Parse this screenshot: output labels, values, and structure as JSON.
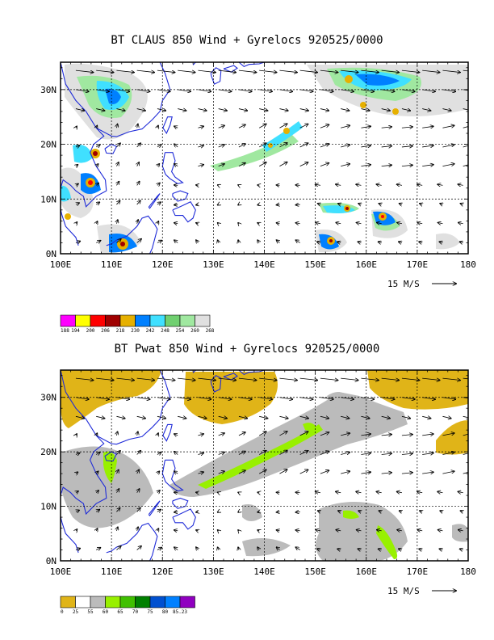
{
  "panel1": {
    "title": "BT CLAUS 850 Wind + Gyrelocs 920525/0000",
    "lon_labels": [
      "100E",
      "110E",
      "120E",
      "130E",
      "140E",
      "150E",
      "160E",
      "170E",
      "180"
    ],
    "lat_labels": [
      "0N",
      "10N",
      "20N",
      "30N"
    ],
    "ref_vector_label": "15 M/S",
    "colorbar": {
      "colors": [
        "#ff00ff",
        "#ffff00",
        "#ff0000",
        "#a00000",
        "#e6b000",
        "#0080ff",
        "#40e0ff",
        "#70d070",
        "#a0e8a0",
        "#e0e0e0"
      ],
      "labels": [
        "188",
        "194",
        "200",
        "206",
        "218",
        "230",
        "242",
        "248",
        "254",
        "260",
        "268"
      ]
    }
  },
  "panel2": {
    "title": "BT Pwat 850 Wind + Gyrelocs 920525/0000",
    "lon_labels": [
      "100E",
      "110E",
      "120E",
      "130E",
      "140E",
      "150E",
      "160E",
      "170E",
      "180"
    ],
    "lat_labels": [
      "0N",
      "10N",
      "20N",
      "30N"
    ],
    "ref_vector_label": "15 M/S",
    "colorbar": {
      "colors": [
        "#e0b418",
        "#ffffff",
        "#bbbbbb",
        "#98f000",
        "#40c000",
        "#008000",
        "#0050d0",
        "#0080ff",
        "#9000c0"
      ],
      "labels": [
        "0",
        "25",
        "55",
        "60",
        "65",
        "70",
        "75",
        "80",
        "85.23"
      ]
    }
  }
}
